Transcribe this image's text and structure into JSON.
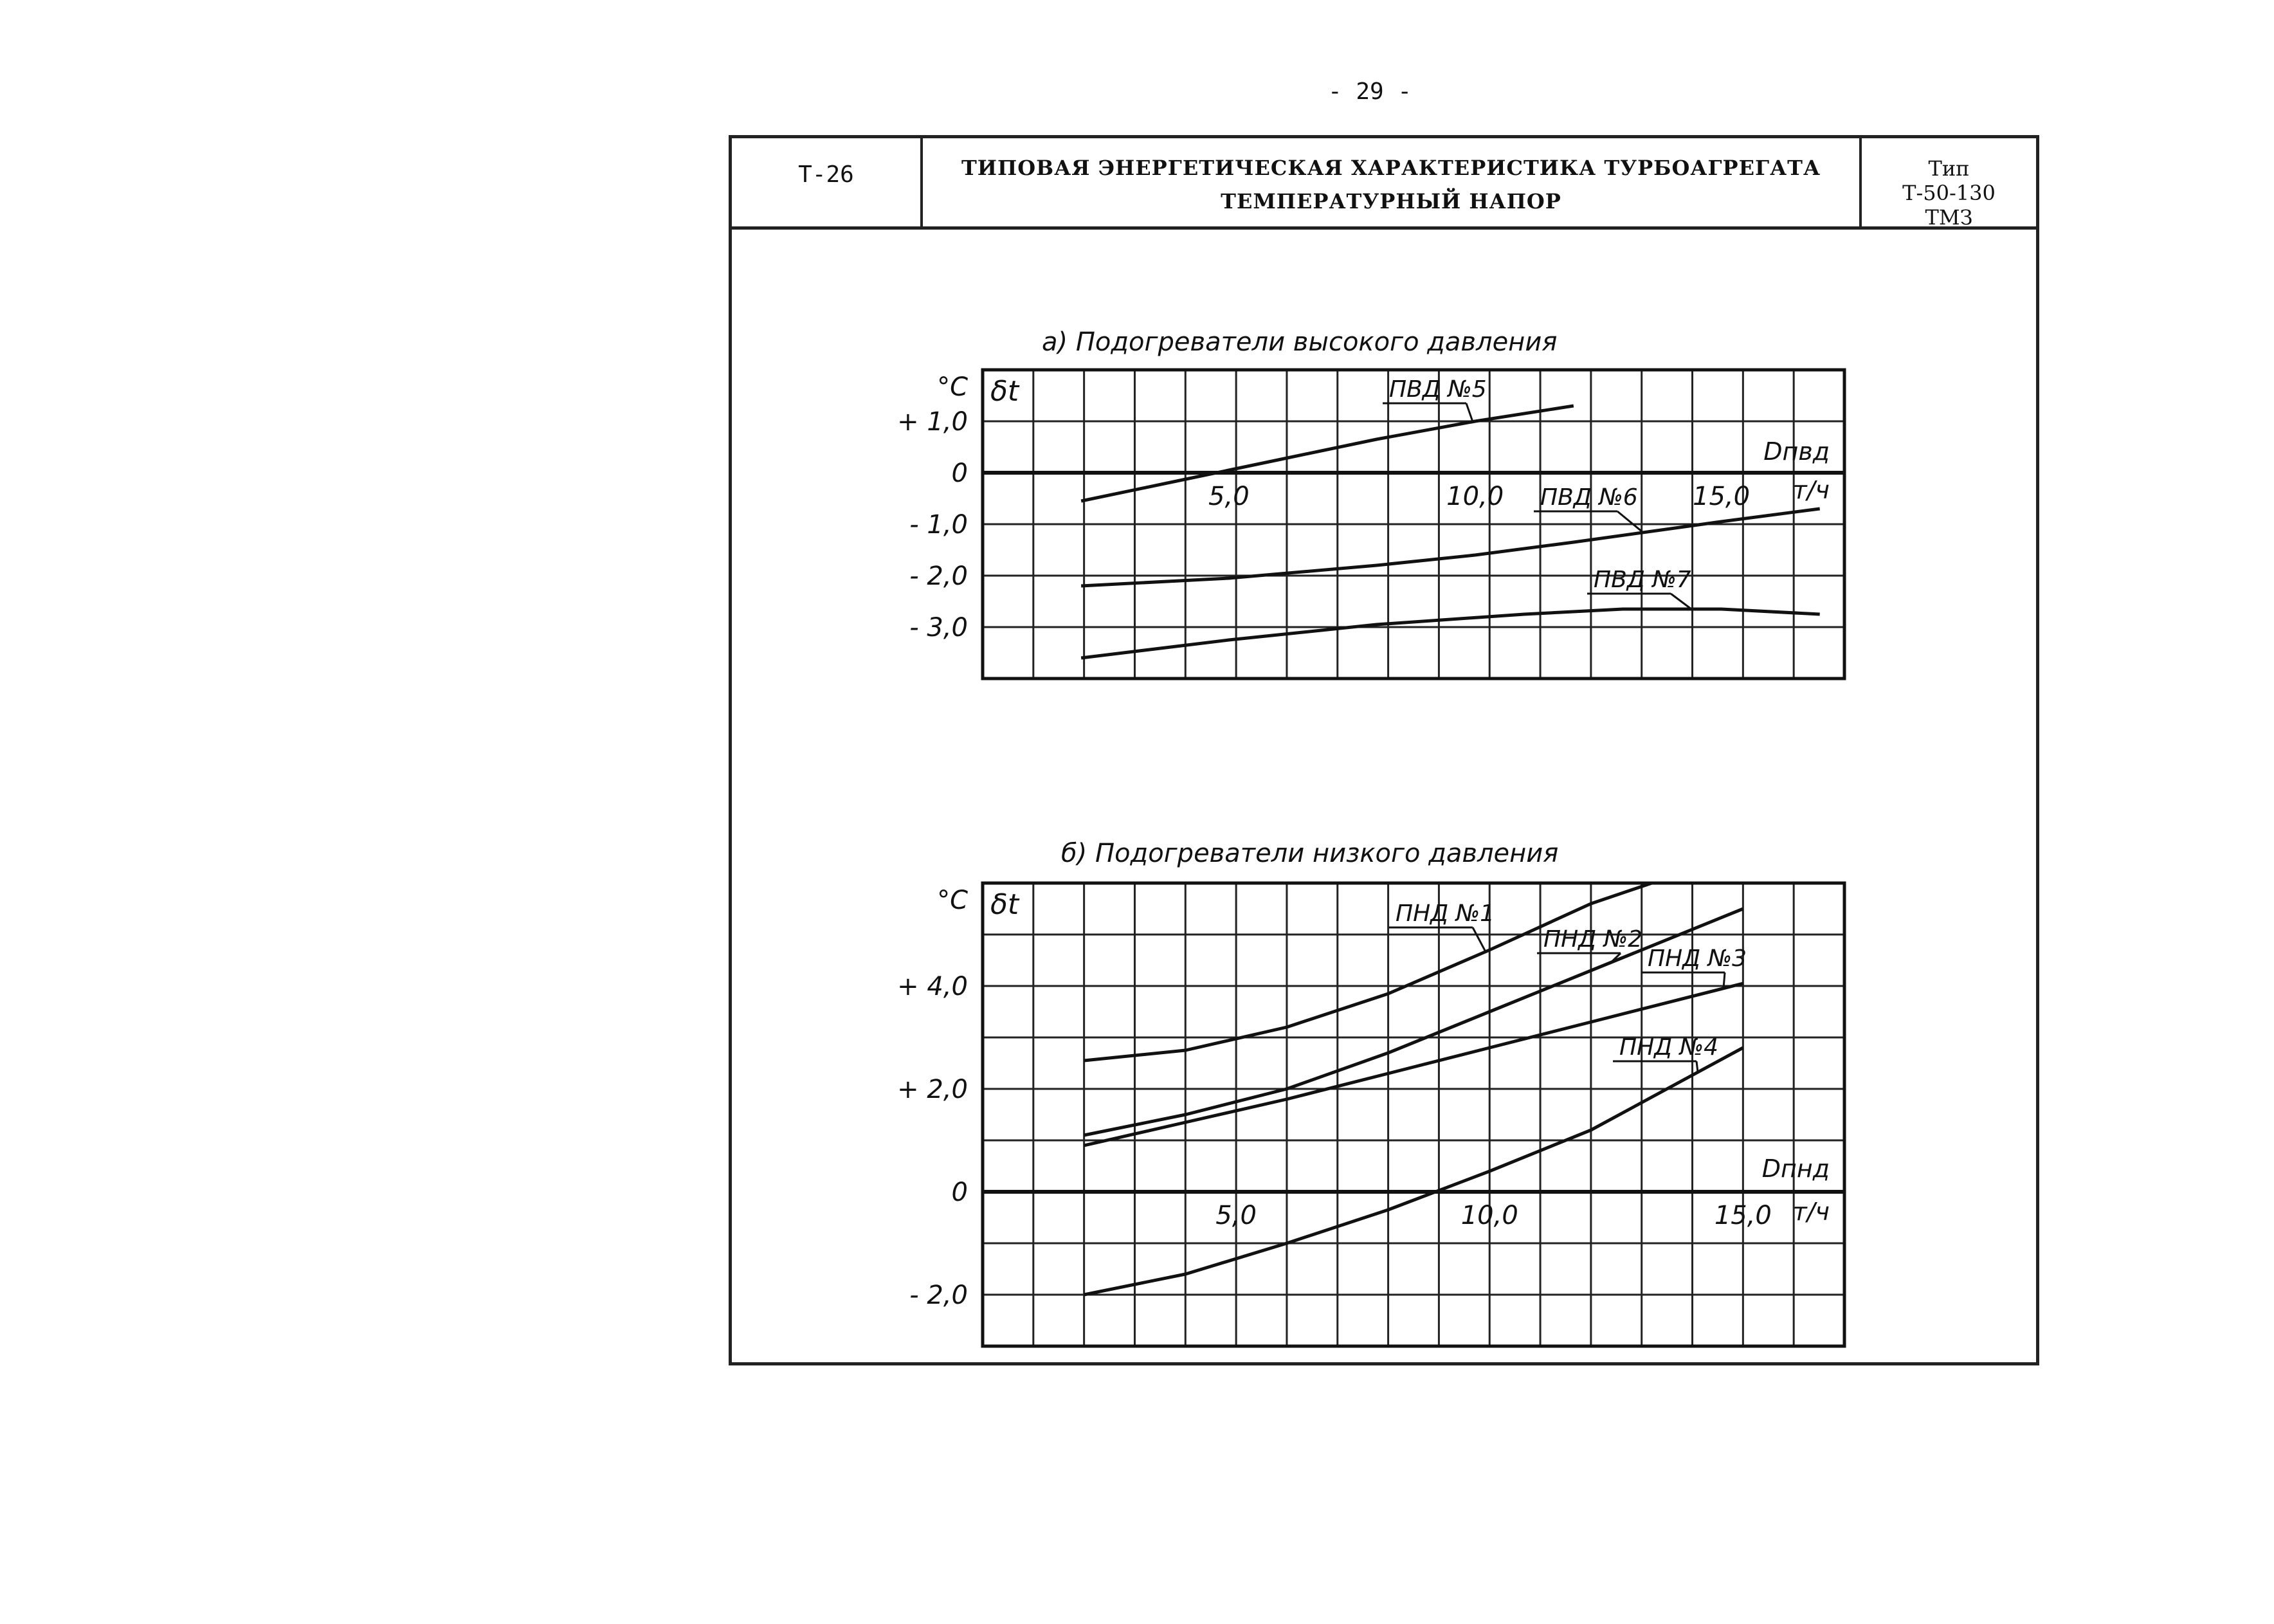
{
  "page_number": "- 29 -",
  "header": {
    "code": "Т-26",
    "title_line1": "ТИПОВАЯ ЭНЕРГЕТИЧЕСКАЯ ХАРАКТЕРИСТИКА ТУРБОАГРЕГАТА",
    "title_line2": "ТЕМПЕРАТУРНЫЙ НАПОР",
    "type_label": "Тип",
    "type_model": "Т-50-130",
    "type_maker": "ТМЗ"
  },
  "chart_data": [
    {
      "type": "line",
      "title": "а) Подогреватели высокого давления",
      "ylabel": "δt",
      "yunit": "°C",
      "xlabel": "Dпвд",
      "xunit": "т/ч",
      "xlim": [
        0,
        17.5
      ],
      "ylim": [
        -4.0,
        2.0
      ],
      "grid": true,
      "x_ticks": [
        {
          "value": 5,
          "label": "5,0"
        },
        {
          "value": 10,
          "label": "10,0"
        },
        {
          "value": 15,
          "label": "15,0"
        }
      ],
      "y_ticks": [
        {
          "value": 1,
          "label": "+ 1,0"
        },
        {
          "value": 0,
          "label": "0"
        },
        {
          "value": -1,
          "label": "- 1,0"
        },
        {
          "value": -2,
          "label": "- 2,0"
        },
        {
          "value": -3,
          "label": "- 3,0"
        }
      ],
      "series": [
        {
          "name": "ПВД №5",
          "x": [
            2,
            4,
            5,
            6,
            8,
            10,
            12
          ],
          "y": [
            -0.55,
            -0.15,
            0.05,
            0.25,
            0.65,
            1.0,
            1.3
          ]
        },
        {
          "name": "ПВД №6",
          "x": [
            2,
            5,
            8,
            10,
            12,
            15,
            17
          ],
          "y": [
            -2.2,
            -2.05,
            -1.8,
            -1.6,
            -1.35,
            -0.95,
            -0.7
          ]
        },
        {
          "name": "ПВД №7",
          "x": [
            2,
            5,
            8,
            11,
            13,
            15,
            17
          ],
          "y": [
            -3.6,
            -3.25,
            -2.95,
            -2.75,
            -2.65,
            -2.65,
            -2.75
          ]
        }
      ]
    },
    {
      "type": "line",
      "title": "б) Подогреватели низкого давления",
      "ylabel": "δt",
      "yunit": "°C",
      "xlabel": "Dпнд",
      "xunit": "т/ч",
      "xlim": [
        0,
        17
      ],
      "ylim": [
        -3.0,
        6.0
      ],
      "grid": true,
      "x_ticks": [
        {
          "value": 5,
          "label": "5,0"
        },
        {
          "value": 10,
          "label": "10,0"
        },
        {
          "value": 15,
          "label": "15,0"
        }
      ],
      "y_ticks": [
        {
          "value": 4,
          "label": "+ 4,0"
        },
        {
          "value": 2,
          "label": "+ 2,0"
        },
        {
          "value": 0,
          "label": "0"
        },
        {
          "value": -2,
          "label": "- 2,0"
        }
      ],
      "series": [
        {
          "name": "ПНД №1",
          "x": [
            2,
            4,
            6,
            8,
            10,
            12,
            13.2
          ],
          "y": [
            2.55,
            2.75,
            3.2,
            3.85,
            4.7,
            5.6,
            6.0
          ]
        },
        {
          "name": "ПНД №2",
          "x": [
            2,
            4,
            6,
            8,
            10,
            12,
            15
          ],
          "y": [
            1.1,
            1.5,
            2.0,
            2.7,
            3.5,
            4.3,
            5.5
          ]
        },
        {
          "name": "ПНД №3",
          "x": [
            2,
            4,
            6,
            8,
            10,
            12,
            15
          ],
          "y": [
            0.9,
            1.35,
            1.8,
            2.3,
            2.8,
            3.3,
            4.05
          ]
        },
        {
          "name": "ПНД №4",
          "x": [
            2,
            4,
            6,
            8,
            10,
            12,
            15
          ],
          "y": [
            -2.0,
            -1.6,
            -1.0,
            -0.35,
            0.4,
            1.2,
            2.8
          ]
        }
      ]
    }
  ]
}
